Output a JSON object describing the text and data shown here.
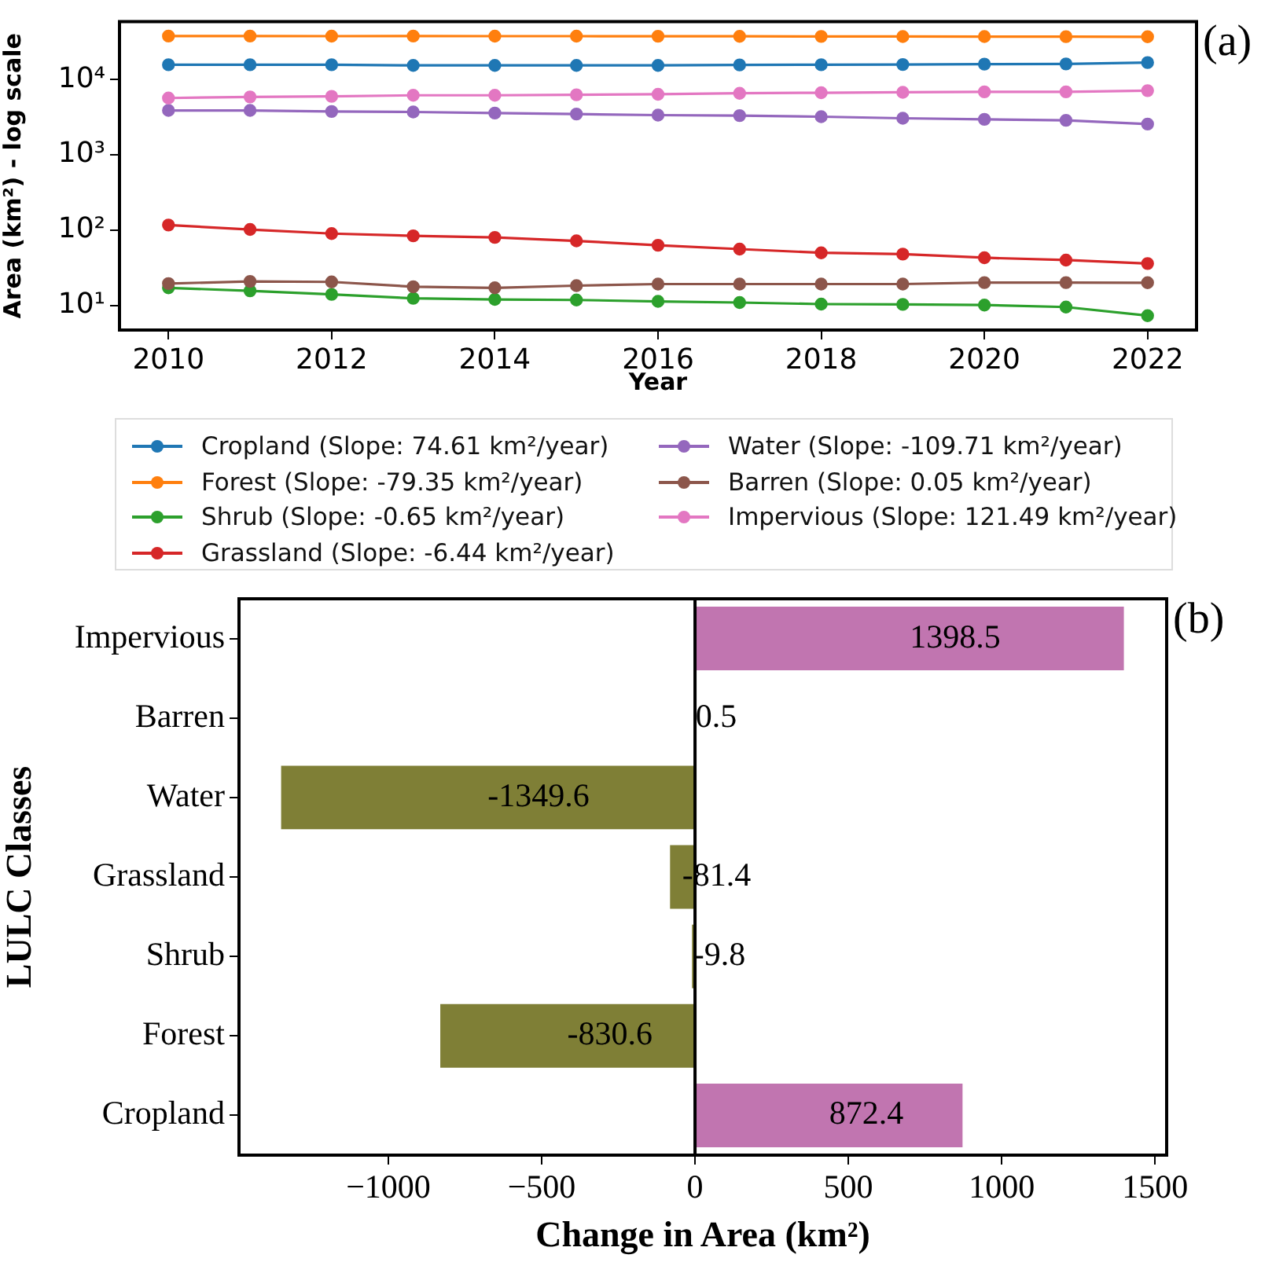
{
  "chart_data": [
    {
      "type": "line",
      "xlabel": "Year",
      "ylabel": "Area (km²) - log scale",
      "annotations": [
        "(a)"
      ],
      "x": [
        2010,
        2011,
        2012,
        2013,
        2014,
        2015,
        2016,
        2017,
        2018,
        2019,
        2020,
        2021,
        2022
      ],
      "xlim": [
        2009.4,
        2022.6
      ],
      "xticks": [
        2010,
        2012,
        2014,
        2016,
        2018,
        2020,
        2022
      ],
      "log": "y",
      "ylim": [
        4.7,
        59000
      ],
      "yticks": [
        {
          "value": 10,
          "label": "10¹"
        },
        {
          "value": 100,
          "label": "10²"
        },
        {
          "value": 1000,
          "label": "10³"
        },
        {
          "value": 10000,
          "label": "10⁴"
        }
      ],
      "grid": false,
      "legend": "bottom",
      "marker": "circle",
      "line_style": "solid",
      "series": [
        {
          "name": "Cropland (Slope: 74.61 km²/year)",
          "color": "#1f77b4",
          "values": [
            15800,
            15800,
            15800,
            15500,
            15500,
            15500,
            15500,
            15700,
            15800,
            15900,
            16100,
            16200,
            16900
          ]
        },
        {
          "name": "Forest (Slope: -79.35 km²/year)",
          "color": "#ff7f0e",
          "values": [
            38000,
            38000,
            37900,
            38000,
            37900,
            37900,
            37800,
            37700,
            37600,
            37500,
            37400,
            37300,
            37200
          ]
        },
        {
          "name": "Shrub (Slope: -0.65 km²/year)",
          "color": "#2ca02c",
          "values": [
            17.1,
            15.6,
            14.0,
            12.4,
            12.0,
            11.8,
            11.3,
            10.9,
            10.4,
            10.3,
            10.1,
            9.5,
            7.3
          ]
        },
        {
          "name": "Grassland (Slope: -6.44 km²/year)",
          "color": "#d62728",
          "values": [
            117,
            102,
            90,
            84,
            80,
            72,
            63,
            56,
            50,
            48,
            43,
            40,
            36
          ]
        },
        {
          "name": "Water (Slope: -109.71 km²/year)",
          "color": "#9467bd",
          "values": [
            3900,
            3900,
            3780,
            3720,
            3600,
            3490,
            3380,
            3330,
            3220,
            3070,
            2970,
            2880,
            2570
          ]
        },
        {
          "name": "Barren (Slope: 0.05 km²/year)",
          "color": "#8c564b",
          "values": [
            19.5,
            20.8,
            20.5,
            17.7,
            17.1,
            18.3,
            19.2,
            19.2,
            19.2,
            19.2,
            20.1,
            20.1,
            20.0
          ]
        },
        {
          "name": "Impervious (Slope: 121.49 km²/year)",
          "color": "#e377c2",
          "values": [
            5700,
            5900,
            6000,
            6200,
            6200,
            6300,
            6400,
            6600,
            6700,
            6800,
            6900,
            6900,
            7150
          ]
        }
      ]
    },
    {
      "type": "bar",
      "orientation": "horizontal",
      "xlabel": "Change in Area (km²)",
      "ylabel": "LULC Classes",
      "annotations": [
        "(b)"
      ],
      "categories": [
        "Impervious",
        "Barren",
        "Water",
        "Grassland",
        "Shrub",
        "Forest",
        "Cropland"
      ],
      "values": [
        1398.5,
        0.5,
        -1349.6,
        -81.4,
        -9.8,
        -830.6,
        872.4
      ],
      "colors": [
        "#c175b0",
        "#c175b0",
        "#7f7f36",
        "#7f7f36",
        "#7f7f36",
        "#7f7f36",
        "#c175b0"
      ],
      "xlim": [
        -1487,
        1538
      ],
      "xticks": [
        {
          "value": -1000,
          "label": "−1000"
        },
        {
          "value": -500,
          "label": "−500"
        },
        0,
        500,
        1000,
        1500
      ],
      "grid": false,
      "data_labels": true,
      "ref_lines": [
        {
          "axis": "x",
          "value": 0,
          "color": "#000000"
        }
      ]
    }
  ]
}
